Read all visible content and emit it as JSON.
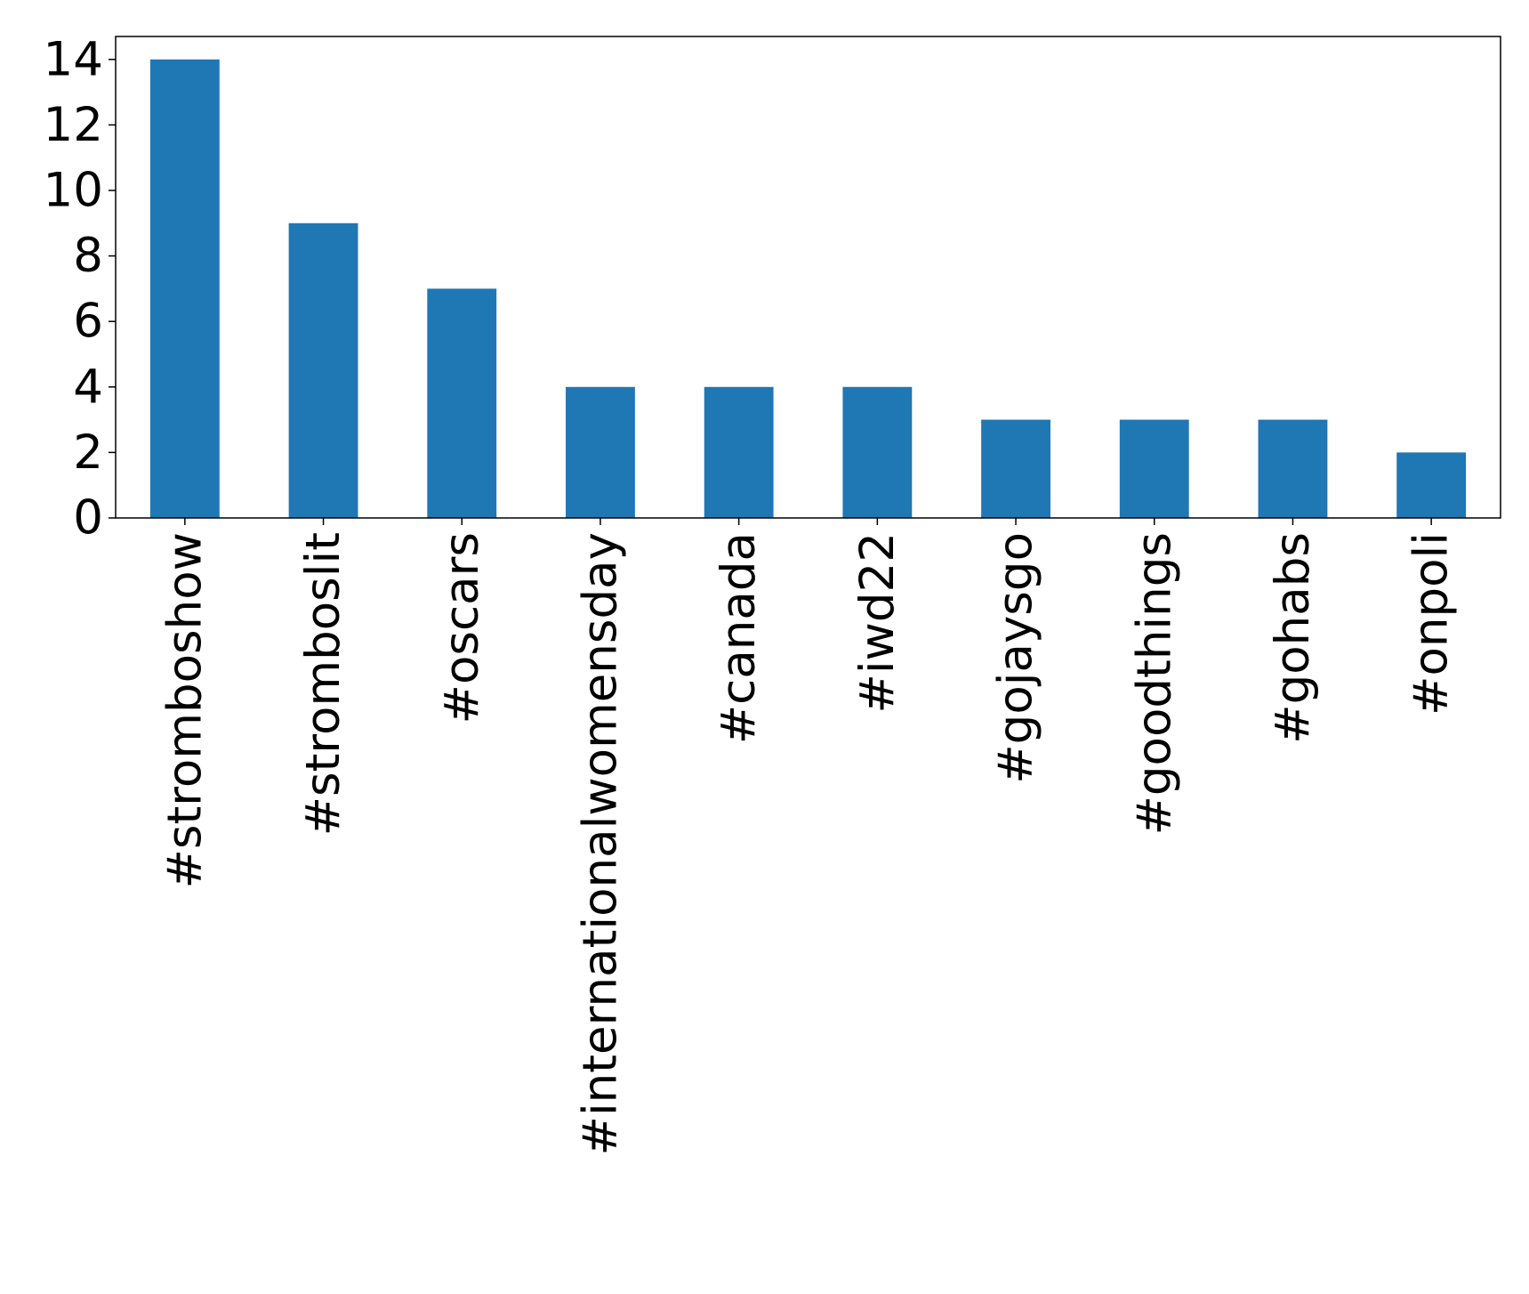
{
  "chart_data": {
    "type": "bar",
    "categories": [
      "#stromboshow",
      "#stromboslit",
      "#oscars",
      "#internationalwomensday",
      "#canada",
      "#iwd22",
      "#gojaysgo",
      "#goodthings",
      "#gohabs",
      "#onpoli"
    ],
    "values": [
      14,
      9,
      7,
      4,
      4,
      4,
      3,
      3,
      3,
      2
    ],
    "color": "#1f77b4",
    "ylim": [
      0,
      14.7
    ],
    "yticks": [
      0,
      2,
      4,
      6,
      8,
      10,
      12,
      14
    ],
    "grid": false
  }
}
